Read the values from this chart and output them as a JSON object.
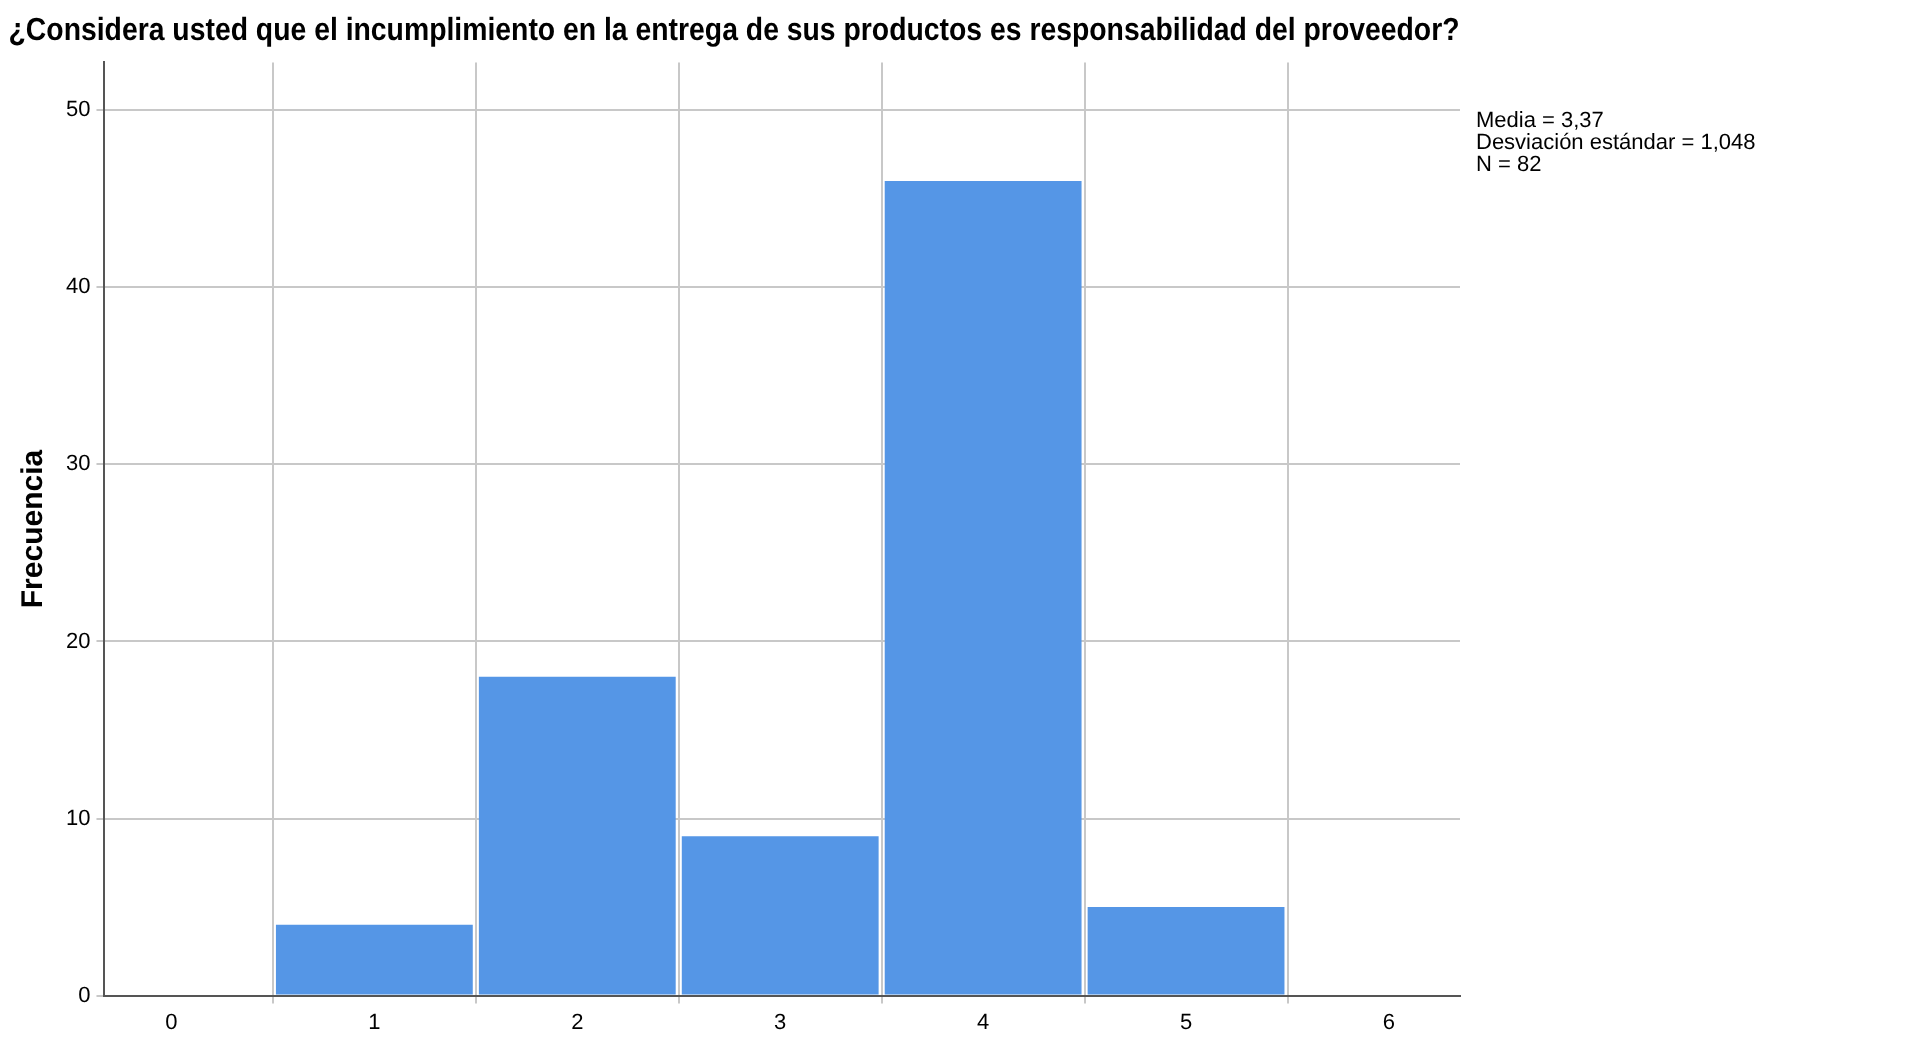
{
  "chart_data": {
    "type": "histogram",
    "title": "¿Considera usted que el incumplimiento en la entrega de sus productos es responsabilidad del proveedor?",
    "ylabel": "Frecuencia",
    "bins": [
      0.5,
      1.5,
      2.5,
      3.5,
      4.5,
      5.5
    ],
    "values": [
      4,
      18,
      9,
      46,
      5
    ],
    "color": "#5596e6",
    "xlim": [
      -0.33,
      6.35
    ],
    "xticks": [
      0,
      1,
      2,
      3,
      4,
      5,
      6
    ],
    "ylim": [
      0,
      52.7
    ],
    "yticks": [
      0,
      10,
      20,
      30,
      40,
      50
    ],
    "grid": true,
    "legend": false,
    "annotations": [
      "Media = 3,37",
      "Desviación estándar = 1,048",
      "N = 82"
    ]
  }
}
